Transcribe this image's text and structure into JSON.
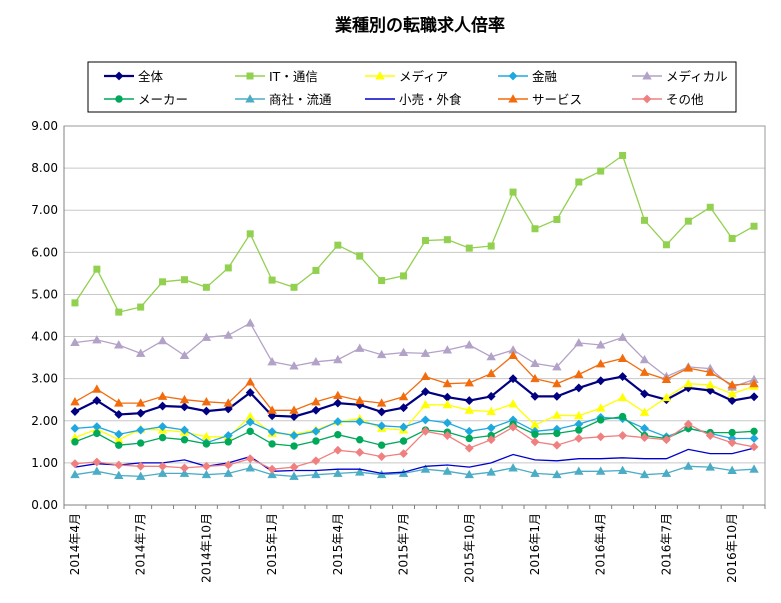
{
  "chart_data": {
    "type": "line",
    "title": "業種別の転職求人倍率",
    "ylim": [
      0,
      9
    ],
    "yticks": [
      "0.00",
      "1.00",
      "2.00",
      "3.00",
      "4.00",
      "5.00",
      "6.00",
      "7.00",
      "8.00",
      "9.00"
    ],
    "x_labels": [
      "2014年4月",
      "2014年7月",
      "2014年10月",
      "2015年1月",
      "2015年4月",
      "2015年7月",
      "2015年10月",
      "2016年1月",
      "2016年4月",
      "2016年7月",
      "2016年10月"
    ],
    "grid": "horizontal",
    "legend_position": "top",
    "x": [
      "2014-04",
      "2014-05",
      "2014-06",
      "2014-07",
      "2014-08",
      "2014-09",
      "2014-10",
      "2014-11",
      "2014-12",
      "2015-01",
      "2015-02",
      "2015-03",
      "2015-04",
      "2015-05",
      "2015-06",
      "2015-07",
      "2015-08",
      "2015-09",
      "2015-10",
      "2015-11",
      "2015-12",
      "2016-01",
      "2016-02",
      "2016-03",
      "2016-04",
      "2016-05",
      "2016-06",
      "2016-07",
      "2016-08",
      "2016-09",
      "2016-10",
      "2016-11"
    ],
    "series": [
      {
        "name": "全体",
        "color": "#000080",
        "marker": "diamond",
        "values": [
          2.22,
          2.48,
          2.15,
          2.18,
          2.35,
          2.33,
          2.23,
          2.28,
          2.67,
          2.12,
          2.1,
          2.25,
          2.42,
          2.38,
          2.21,
          2.31,
          2.69,
          2.56,
          2.48,
          2.58,
          3.0,
          2.58,
          2.58,
          2.78,
          2.95,
          3.05,
          2.64,
          2.5,
          2.78,
          2.72,
          2.48,
          2.57
        ]
      },
      {
        "name": "IT・通信",
        "color": "#92D050",
        "marker": "square",
        "values": [
          4.8,
          5.6,
          4.58,
          4.7,
          5.3,
          5.35,
          5.17,
          5.63,
          6.44,
          5.34,
          5.17,
          5.57,
          6.17,
          5.91,
          5.33,
          5.44,
          6.28,
          6.3,
          6.1,
          6.15,
          7.43,
          6.56,
          6.78,
          7.67,
          7.93,
          8.3,
          6.76,
          6.18,
          6.74,
          7.07,
          6.33,
          6.62
        ]
      },
      {
        "name": "メディア",
        "color": "#FFFF00",
        "marker": "triangle",
        "values": [
          1.6,
          1.8,
          1.55,
          1.8,
          1.78,
          1.73,
          1.62,
          1.62,
          2.1,
          1.7,
          1.68,
          1.78,
          1.98,
          2.05,
          1.82,
          1.78,
          2.38,
          2.38,
          2.25,
          2.22,
          2.4,
          1.9,
          2.13,
          2.12,
          2.3,
          2.55,
          2.2,
          2.55,
          2.88,
          2.85,
          2.64,
          2.82
        ]
      },
      {
        "name": "金融",
        "color": "#1EA8E0",
        "marker": "diamond",
        "values": [
          1.82,
          1.86,
          1.68,
          1.78,
          1.86,
          1.78,
          1.48,
          1.65,
          1.97,
          1.74,
          1.65,
          1.75,
          1.98,
          1.98,
          1.88,
          1.85,
          2.02,
          1.95,
          1.75,
          1.83,
          2.02,
          1.75,
          1.8,
          1.92,
          2.08,
          2.05,
          1.82,
          1.62,
          1.82,
          1.7,
          1.58,
          1.58
        ]
      },
      {
        "name": "メディカル",
        "color": "#B3A2C7",
        "marker": "triangle",
        "values": [
          3.86,
          3.92,
          3.8,
          3.6,
          3.9,
          3.55,
          3.98,
          4.03,
          4.32,
          3.4,
          3.3,
          3.4,
          3.45,
          3.72,
          3.57,
          3.62,
          3.6,
          3.68,
          3.8,
          3.52,
          3.68,
          3.36,
          3.28,
          3.85,
          3.8,
          3.98,
          3.45,
          3.05,
          3.28,
          3.24,
          2.8,
          2.98
        ]
      },
      {
        "name": "メーカー",
        "color": "#00A859",
        "marker": "circle",
        "values": [
          1.5,
          1.7,
          1.42,
          1.47,
          1.6,
          1.55,
          1.45,
          1.5,
          1.75,
          1.45,
          1.4,
          1.52,
          1.67,
          1.55,
          1.42,
          1.52,
          1.78,
          1.73,
          1.58,
          1.65,
          1.92,
          1.68,
          1.7,
          1.78,
          2.02,
          2.1,
          1.65,
          1.58,
          1.82,
          1.72,
          1.72,
          1.75
        ]
      },
      {
        "name": "商社・流通",
        "color": "#4BACC6",
        "marker": "triangle",
        "values": [
          0.72,
          0.8,
          0.7,
          0.68,
          0.75,
          0.75,
          0.72,
          0.75,
          0.88,
          0.72,
          0.68,
          0.72,
          0.75,
          0.78,
          0.72,
          0.75,
          0.85,
          0.8,
          0.72,
          0.78,
          0.88,
          0.75,
          0.72,
          0.8,
          0.8,
          0.82,
          0.72,
          0.75,
          0.92,
          0.9,
          0.82,
          0.85
        ]
      },
      {
        "name": "小売・外食",
        "color": "#0000CC",
        "marker": "line",
        "values": [
          0.9,
          0.98,
          0.95,
          1.0,
          1.0,
          1.07,
          0.92,
          1.0,
          1.15,
          0.8,
          0.82,
          0.82,
          0.85,
          0.85,
          0.75,
          0.78,
          0.92,
          0.95,
          0.9,
          1.0,
          1.2,
          1.07,
          1.05,
          1.1,
          1.1,
          1.12,
          1.1,
          1.1,
          1.32,
          1.22,
          1.22,
          1.35
        ]
      },
      {
        "name": "サービス",
        "color": "#F26C0D",
        "marker": "triangle",
        "values": [
          2.45,
          2.75,
          2.42,
          2.42,
          2.58,
          2.5,
          2.45,
          2.42,
          2.92,
          2.25,
          2.25,
          2.45,
          2.6,
          2.48,
          2.42,
          2.57,
          3.05,
          2.88,
          2.9,
          3.12,
          3.55,
          3.0,
          2.88,
          3.1,
          3.35,
          3.48,
          3.15,
          2.98,
          3.25,
          3.15,
          2.85,
          2.88
        ]
      },
      {
        "name": "その他",
        "color": "#F08080",
        "marker": "diamond",
        "values": [
          0.98,
          1.02,
          0.95,
          0.92,
          0.92,
          0.88,
          0.92,
          0.95,
          1.1,
          0.85,
          0.9,
          1.05,
          1.3,
          1.25,
          1.15,
          1.22,
          1.75,
          1.65,
          1.35,
          1.55,
          1.85,
          1.5,
          1.42,
          1.58,
          1.62,
          1.65,
          1.6,
          1.55,
          1.92,
          1.65,
          1.48,
          1.38
        ]
      }
    ]
  }
}
